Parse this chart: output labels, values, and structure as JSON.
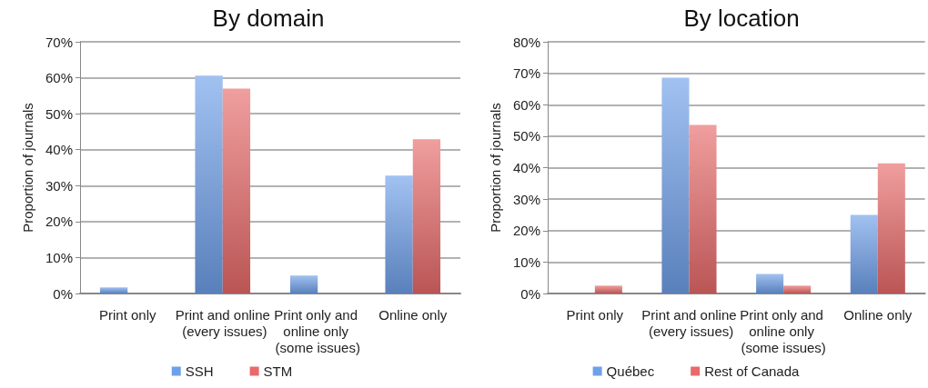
{
  "chart_data": [
    {
      "type": "bar",
      "title": "By domain",
      "ylabel": "Proportion of journals",
      "categories": [
        "Print only",
        "Print and online (every issues)",
        "Print only and online only (some issues)",
        "Online only"
      ],
      "series": [
        {
          "name": "SSH",
          "color": "#6fa0ea",
          "values": [
            1.7,
            60.6,
            5.0,
            32.8
          ]
        },
        {
          "name": "STM",
          "color": "#e86a6a",
          "values": [
            0,
            57.0,
            0,
            42.9
          ]
        }
      ],
      "ylim": [
        0,
        70
      ],
      "yticks": [
        {
          "value": 0,
          "label": "0%"
        },
        {
          "value": 10,
          "label": "10%"
        },
        {
          "value": 20,
          "label": "20%"
        },
        {
          "value": 30,
          "label": "30%"
        },
        {
          "value": 40,
          "label": "40%"
        },
        {
          "value": 50,
          "label": "50%"
        },
        {
          "value": 60,
          "label": "60%"
        },
        {
          "value": 70,
          "label": "70%"
        }
      ],
      "grid": "y",
      "legend": "bottom"
    },
    {
      "type": "bar",
      "title": "By location",
      "ylabel": "Proportion of journals",
      "categories": [
        "Print only",
        "Print and online (every issues)",
        "Print only and online only (some issues)",
        "Online only"
      ],
      "series": [
        {
          "name": "Québec",
          "color": "#6fa0ea",
          "values": [
            0,
            68.6,
            6.2,
            25.0
          ]
        },
        {
          "name": "Rest of Canada",
          "color": "#e86a6a",
          "values": [
            2.5,
            53.6,
            2.5,
            41.4
          ]
        }
      ],
      "ylim": [
        0,
        80
      ],
      "yticks": [
        {
          "value": 0,
          "label": "0%"
        },
        {
          "value": 10,
          "label": "10%"
        },
        {
          "value": 20,
          "label": "20%"
        },
        {
          "value": 30,
          "label": "30%"
        },
        {
          "value": 40,
          "label": "40%"
        },
        {
          "value": 50,
          "label": "50%"
        },
        {
          "value": 60,
          "label": "60%"
        },
        {
          "value": 70,
          "label": "70%"
        },
        {
          "value": 80,
          "label": "80%"
        }
      ],
      "grid": "y",
      "legend": "bottom"
    }
  ]
}
